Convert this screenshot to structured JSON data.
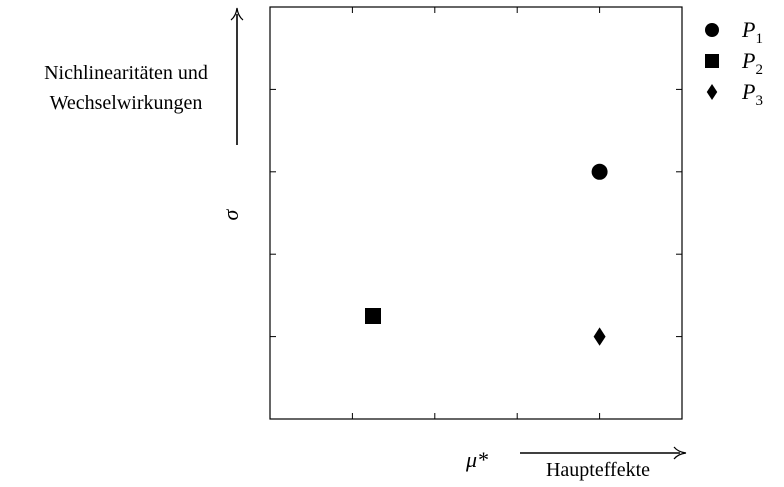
{
  "chart_data": {
    "type": "scatter",
    "xlim": [
      0,
      5
    ],
    "ylim": [
      0,
      5
    ],
    "x_ticks": [
      1,
      2,
      3,
      4
    ],
    "y_ticks": [
      1,
      2,
      3,
      4
    ],
    "grid": false,
    "legend_position": "top-right outside",
    "xlabel": "μ*",
    "ylabel": "σ",
    "x_arrow_label": "Haupteffekte",
    "y_arrow_label_lines": [
      "Nichlinearitäten und",
      "Wechselwirkungen"
    ],
    "series": [
      {
        "name": "P1",
        "marker": "circle",
        "x": 4.0,
        "y": 3.0
      },
      {
        "name": "P2",
        "marker": "square",
        "x": 1.25,
        "y": 1.25
      },
      {
        "name": "P3",
        "marker": "diamond",
        "x": 4.0,
        "y": 1.0
      }
    ]
  }
}
